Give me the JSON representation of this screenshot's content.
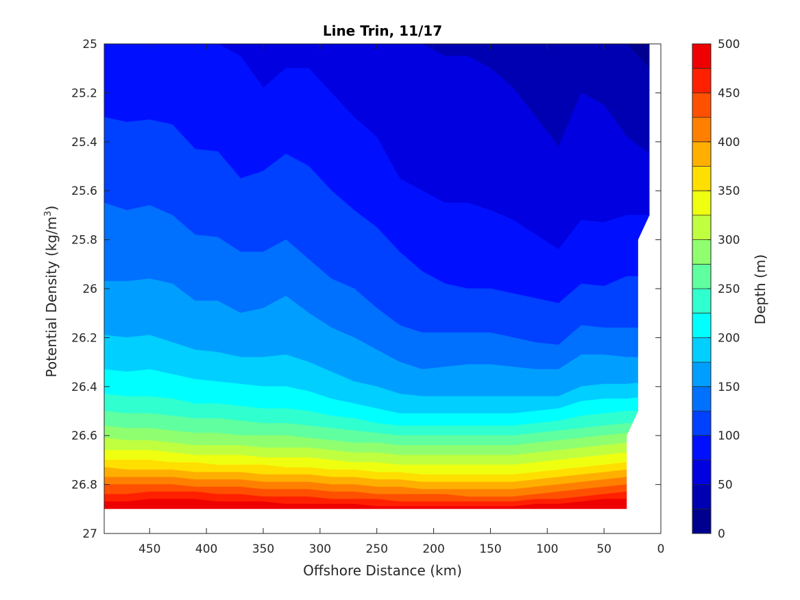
{
  "chart_data": {
    "type": "filled-contour",
    "title": "Line Trin, 11/17",
    "xlabel": "Offshore Distance (km)",
    "ylabel_main": "Potential Density (kg/m",
    "ylabel_sup": "3",
    "ylabel_close": ")",
    "colorbar_label": "Depth (m)",
    "x_reversed": true,
    "xlim": [
      0,
      490
    ],
    "ylim": [
      25,
      27
    ],
    "y_reversed": true,
    "x_ticks": [
      450,
      400,
      350,
      300,
      250,
      200,
      150,
      100,
      50,
      0
    ],
    "x_tick_labels": [
      "450",
      "400",
      "350",
      "300",
      "250",
      "200",
      "150",
      "100",
      "50",
      "0"
    ],
    "y_ticks": [
      25,
      25.2,
      25.4,
      25.6,
      25.8,
      26,
      26.2,
      26.4,
      26.6,
      26.8,
      27
    ],
    "y_tick_labels": [
      "25",
      "25.2",
      "25.4",
      "25.6",
      "25.8",
      "26",
      "26.2",
      "26.4",
      "26.6",
      "26.8",
      "27"
    ],
    "colorbar_ticks": [
      0,
      50,
      100,
      150,
      200,
      250,
      300,
      350,
      400,
      450,
      500
    ],
    "colorbar_tick_labels": [
      "0",
      "50",
      "100",
      "150",
      "200",
      "250",
      "300",
      "350",
      "400",
      "450",
      "500"
    ],
    "colorbar_range": [
      0,
      500
    ],
    "contour_step": 25,
    "colormap": "jet",
    "level_colors": [
      "#00008F",
      "#0000B3",
      "#0000E0",
      "#0010FF",
      "#0040FF",
      "#0070FF",
      "#009FFF",
      "#00CFFF",
      "#00FFFF",
      "#30FFCF",
      "#60FF9F",
      "#8FFF70",
      "#BFFF40",
      "#EFFF10",
      "#FFDF00",
      "#FFAF00",
      "#FF8000",
      "#FF5000",
      "#FF2000",
      "#EF0000",
      "#BF0000"
    ],
    "boundary_levels": [
      25,
      50,
      75,
      100,
      125,
      150,
      175,
      200,
      225,
      250,
      275,
      300,
      325,
      350,
      375,
      400,
      425,
      450,
      475
    ],
    "boundaries_x": [
      490,
      470,
      450,
      430,
      410,
      390,
      370,
      350,
      330,
      310,
      290,
      270,
      250,
      230,
      210,
      190,
      170,
      150,
      130,
      110,
      90,
      70,
      50,
      30,
      10
    ],
    "boundaries_y": [
      [
        24.99,
        24.99,
        24.98,
        24.99,
        24.97,
        24.99,
        25.0,
        25.0,
        25.0,
        25.0,
        25.0,
        25.0,
        25.0,
        25.0,
        25.0,
        25.0,
        25.0,
        25.0,
        25.0,
        25.0,
        25.0,
        25.0,
        25.0,
        25.0,
        25.1
      ],
      [
        25.0,
        25.0,
        25.0,
        25.0,
        25.0,
        25.0,
        25.0,
        25.0,
        25.0,
        25.0,
        25.0,
        25.0,
        25.0,
        25.0,
        25.0,
        25.05,
        25.05,
        25.1,
        25.18,
        25.3,
        25.42,
        25.2,
        25.25,
        25.38,
        25.45
      ],
      [
        25.0,
        25.0,
        25.0,
        25.0,
        25.0,
        25.0,
        25.05,
        25.18,
        25.1,
        25.1,
        25.2,
        25.3,
        25.38,
        25.55,
        25.6,
        25.65,
        25.65,
        25.68,
        25.72,
        25.78,
        25.84,
        25.72,
        25.73,
        25.7,
        25.7
      ],
      [
        25.3,
        25.32,
        25.31,
        25.33,
        25.43,
        25.44,
        25.55,
        25.52,
        25.45,
        25.5,
        25.6,
        25.68,
        25.75,
        25.85,
        25.93,
        25.98,
        26.0,
        26.0,
        26.02,
        26.04,
        26.06,
        25.98,
        25.99,
        25.95,
        25.95
      ],
      [
        25.65,
        25.68,
        25.66,
        25.7,
        25.78,
        25.79,
        25.85,
        25.85,
        25.8,
        25.88,
        25.96,
        26.0,
        26.08,
        26.15,
        26.18,
        26.18,
        26.18,
        26.18,
        26.2,
        26.22,
        26.23,
        26.15,
        26.16,
        26.16,
        26.16
      ]
    ],
    "boundaries_y_lower": [
      [
        25.97,
        25.97,
        25.96,
        25.98,
        26.05,
        26.05,
        26.1,
        26.08,
        26.03,
        26.1,
        26.16,
        26.2,
        26.25,
        26.3,
        26.33,
        26.32,
        26.31,
        26.31,
        26.32,
        26.33,
        26.33,
        26.27,
        26.27,
        26.28,
        26.28
      ],
      [
        26.19,
        26.2,
        26.19,
        26.22,
        26.25,
        26.26,
        26.28,
        26.28,
        26.27,
        26.3,
        26.34,
        26.38,
        26.4,
        26.43,
        26.44,
        26.44,
        26.44,
        26.44,
        26.44,
        26.44,
        26.44,
        26.4,
        26.39,
        26.39,
        26.38
      ],
      [
        26.33,
        26.34,
        26.33,
        26.35,
        26.37,
        26.38,
        26.39,
        26.4,
        26.4,
        26.42,
        26.45,
        26.47,
        26.49,
        26.51,
        26.51,
        26.51,
        26.51,
        26.51,
        26.51,
        26.5,
        26.49,
        26.46,
        26.45,
        26.45,
        26.44
      ],
      [
        26.43,
        26.44,
        26.44,
        26.45,
        26.47,
        26.47,
        26.48,
        26.49,
        26.49,
        26.5,
        26.52,
        26.53,
        26.55,
        26.56,
        26.56,
        26.56,
        26.56,
        26.56,
        26.56,
        26.55,
        26.54,
        26.52,
        26.51,
        26.5,
        26.5
      ],
      [
        26.5,
        26.51,
        26.51,
        26.52,
        26.53,
        26.53,
        26.54,
        26.55,
        26.55,
        26.56,
        26.57,
        26.58,
        26.59,
        26.6,
        26.6,
        26.6,
        26.6,
        26.6,
        26.6,
        26.59,
        26.58,
        26.57,
        26.56,
        26.55,
        26.55
      ],
      [
        26.56,
        26.57,
        26.57,
        26.58,
        26.59,
        26.59,
        26.6,
        26.6,
        26.6,
        26.61,
        26.62,
        26.63,
        26.63,
        26.64,
        26.64,
        26.64,
        26.64,
        26.64,
        26.64,
        26.63,
        26.62,
        26.61,
        26.6,
        26.59,
        26.59
      ],
      [
        26.61,
        26.62,
        26.62,
        26.63,
        26.64,
        26.64,
        26.64,
        26.65,
        26.65,
        26.65,
        26.66,
        26.67,
        26.67,
        26.68,
        26.68,
        26.68,
        26.68,
        26.68,
        26.68,
        26.67,
        26.66,
        26.65,
        26.64,
        26.63,
        26.63
      ],
      [
        26.66,
        26.66,
        26.66,
        26.67,
        26.68,
        26.68,
        26.68,
        26.69,
        26.69,
        26.69,
        26.7,
        26.71,
        26.71,
        26.72,
        26.72,
        26.72,
        26.72,
        26.72,
        26.72,
        26.71,
        26.7,
        26.69,
        26.68,
        26.67,
        26.67
      ],
      [
        26.7,
        26.7,
        26.7,
        26.71,
        26.71,
        26.72,
        26.72,
        26.72,
        26.73,
        26.73,
        26.74,
        26.74,
        26.75,
        26.75,
        26.76,
        26.76,
        26.76,
        26.76,
        26.76,
        26.75,
        26.74,
        26.73,
        26.72,
        26.71,
        26.71
      ],
      [
        26.73,
        26.74,
        26.74,
        26.74,
        26.75,
        26.75,
        26.75,
        26.76,
        26.76,
        26.76,
        26.77,
        26.77,
        26.78,
        26.78,
        26.79,
        26.79,
        26.79,
        26.79,
        26.79,
        26.78,
        26.77,
        26.76,
        26.75,
        26.74,
        26.74
      ],
      [
        26.77,
        26.77,
        26.77,
        26.77,
        26.78,
        26.78,
        26.78,
        26.79,
        26.79,
        26.79,
        26.8,
        26.8,
        26.81,
        26.81,
        26.82,
        26.82,
        26.82,
        26.82,
        26.82,
        26.81,
        26.8,
        26.79,
        26.78,
        26.77,
        26.77
      ],
      [
        26.8,
        26.8,
        26.8,
        26.8,
        26.81,
        26.81,
        26.81,
        26.82,
        26.82,
        26.82,
        26.83,
        26.83,
        26.84,
        26.84,
        26.84,
        26.84,
        26.85,
        26.85,
        26.85,
        26.84,
        26.83,
        26.82,
        26.81,
        26.8,
        26.8
      ],
      [
        26.84,
        26.84,
        26.83,
        26.83,
        26.83,
        26.84,
        26.84,
        26.85,
        26.85,
        26.85,
        26.86,
        26.86,
        26.86,
        26.87,
        26.87,
        26.87,
        26.87,
        26.87,
        26.87,
        26.86,
        26.86,
        26.85,
        26.84,
        26.83,
        26.83
      ],
      [
        26.87,
        26.87,
        26.86,
        26.86,
        26.86,
        26.87,
        26.87,
        26.87,
        26.88,
        26.88,
        26.88,
        26.88,
        26.89,
        26.89,
        26.89,
        26.89,
        26.89,
        26.89,
        26.89,
        26.88,
        26.88,
        26.87,
        26.86,
        26.86,
        26.86
      ]
    ],
    "data_extent": [
      [
        490,
        25.0
      ],
      [
        10,
        25.0
      ],
      [
        10,
        25.7
      ],
      [
        20,
        25.8
      ],
      [
        20,
        26.5
      ],
      [
        30,
        26.6
      ],
      [
        30,
        26.9
      ],
      [
        490,
        26.9
      ]
    ]
  }
}
